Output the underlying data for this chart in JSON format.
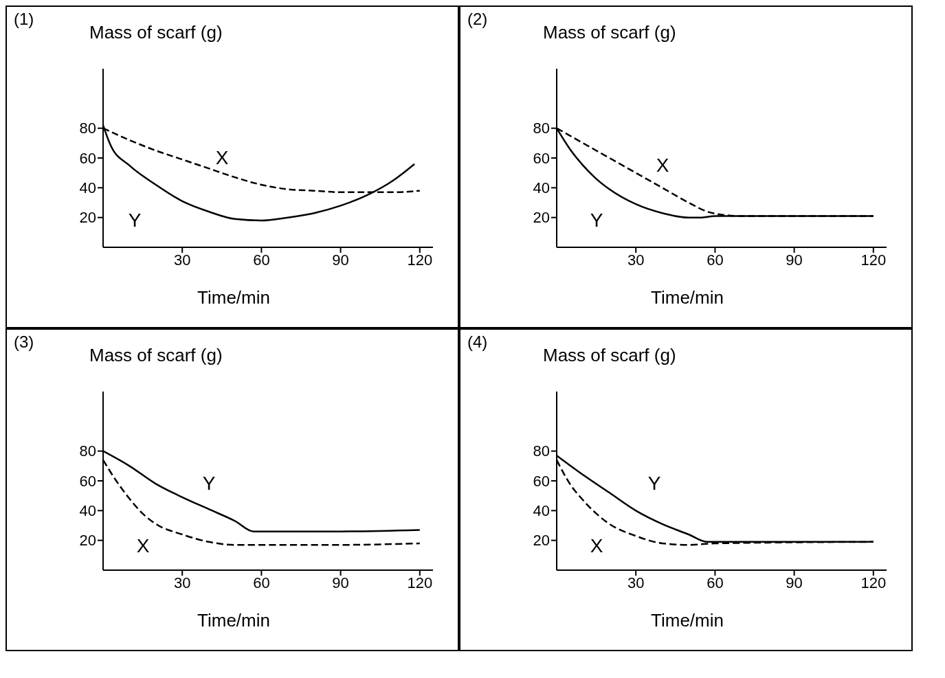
{
  "chart_data": [
    {
      "type": "line",
      "title": "(1)",
      "ylabel": "Mass of scarf (g)",
      "xlabel": "Time/min",
      "xlim": [
        0,
        125
      ],
      "ylim": [
        0,
        120
      ],
      "xticks": [
        30,
        60,
        90,
        120
      ],
      "yticks": [
        20,
        40,
        60,
        80
      ],
      "marker": "none",
      "series": [
        {
          "name": "X",
          "color": "#000000",
          "line_style": "dashed",
          "x": [
            0,
            10,
            20,
            30,
            40,
            50,
            60,
            70,
            80,
            90,
            100,
            110,
            120
          ],
          "values": [
            80,
            72,
            65,
            59,
            53,
            47,
            42,
            39,
            38,
            37,
            37,
            37,
            38
          ]
        },
        {
          "name": "Y",
          "color": "#000000",
          "line_style": "solid",
          "x": [
            0,
            3,
            10,
            20,
            30,
            40,
            50,
            60,
            70,
            80,
            90,
            100,
            110,
            118
          ],
          "values": [
            82,
            68,
            55,
            42,
            31,
            24,
            19,
            18,
            20,
            23,
            28,
            35,
            45,
            56
          ]
        }
      ]
    },
    {
      "type": "line",
      "title": "(2)",
      "ylabel": "Mass of scarf (g)",
      "xlabel": "Time/min",
      "xlim": [
        0,
        125
      ],
      "ylim": [
        0,
        120
      ],
      "xticks": [
        30,
        60,
        90,
        120
      ],
      "yticks": [
        20,
        40,
        60,
        80
      ],
      "marker": "none",
      "series": [
        {
          "name": "X",
          "color": "#000000",
          "line_style": "dashed",
          "x": [
            0,
            10,
            20,
            30,
            40,
            50,
            57,
            62,
            70,
            120
          ],
          "values": [
            80,
            70,
            60,
            50,
            40,
            30,
            24,
            22,
            21,
            21
          ]
        },
        {
          "name": "Y",
          "color": "#000000",
          "line_style": "solid",
          "x": [
            0,
            5,
            10,
            15,
            20,
            30,
            40,
            50,
            55,
            60,
            90,
            120
          ],
          "values": [
            80,
            66,
            55,
            46,
            39,
            29,
            23,
            20,
            20,
            21,
            21,
            21
          ]
        }
      ]
    },
    {
      "type": "line",
      "title": "(3)",
      "ylabel": "Mass of scarf (g)",
      "xlabel": "Time/min",
      "xlim": [
        0,
        125
      ],
      "ylim": [
        0,
        120
      ],
      "xticks": [
        30,
        60,
        90,
        120
      ],
      "yticks": [
        20,
        40,
        60,
        80
      ],
      "marker": "none",
      "series": [
        {
          "name": "Y",
          "color": "#000000",
          "line_style": "solid",
          "x": [
            0,
            10,
            20,
            30,
            40,
            50,
            57,
            60,
            90,
            120
          ],
          "values": [
            80,
            70,
            58,
            49,
            41,
            33,
            26,
            26,
            26,
            27
          ]
        },
        {
          "name": "X",
          "color": "#000000",
          "line_style": "dashed",
          "x": [
            0,
            5,
            10,
            15,
            20,
            30,
            40,
            50,
            60,
            90,
            120
          ],
          "values": [
            74,
            60,
            48,
            38,
            31,
            24,
            19,
            17,
            17,
            17,
            18
          ]
        }
      ]
    },
    {
      "type": "line",
      "title": "(4)",
      "ylabel": "Mass of scarf (g)",
      "xlabel": "Time/min",
      "xlim": [
        0,
        125
      ],
      "ylim": [
        0,
        120
      ],
      "xticks": [
        30,
        60,
        90,
        120
      ],
      "yticks": [
        20,
        40,
        60,
        80
      ],
      "marker": "none",
      "series": [
        {
          "name": "Y",
          "color": "#000000",
          "line_style": "solid",
          "x": [
            0,
            10,
            20,
            30,
            40,
            50,
            57,
            60,
            120
          ],
          "values": [
            77,
            64,
            52,
            40,
            31,
            24,
            19,
            19,
            19
          ]
        },
        {
          "name": "X",
          "color": "#000000",
          "line_style": "dashed",
          "x": [
            0,
            5,
            10,
            15,
            20,
            30,
            40,
            50,
            60,
            120
          ],
          "values": [
            74,
            58,
            47,
            38,
            31,
            23,
            18,
            17,
            18,
            19
          ]
        }
      ]
    }
  ]
}
